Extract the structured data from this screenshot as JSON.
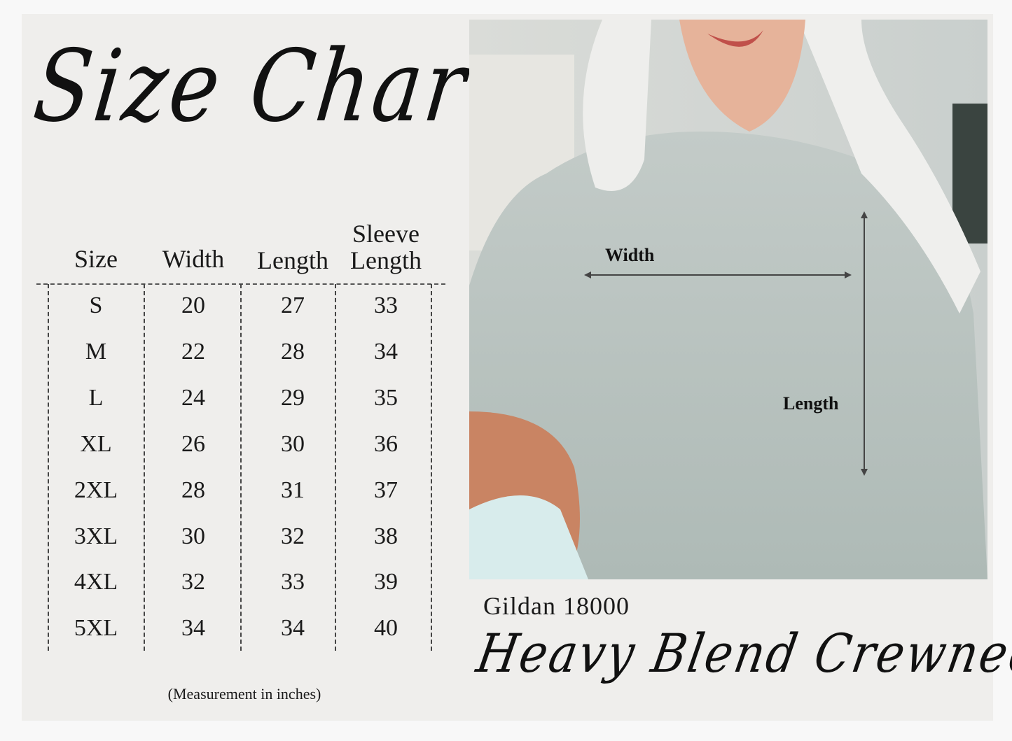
{
  "title": "Size Chart",
  "table": {
    "headers": [
      "Size",
      "Width",
      "Length",
      "Sleeve Length"
    ],
    "header_sleeve_top": "Sleeve",
    "header_sleeve_bottom": "Length",
    "rows": [
      [
        "S",
        "20",
        "27",
        "33"
      ],
      [
        "M",
        "22",
        "28",
        "34"
      ],
      [
        "L",
        "24",
        "29",
        "35"
      ],
      [
        "XL",
        "26",
        "30",
        "36"
      ],
      [
        "2XL",
        "28",
        "31",
        "37"
      ],
      [
        "3XL",
        "30",
        "32",
        "38"
      ],
      [
        "4XL",
        "32",
        "33",
        "39"
      ],
      [
        "5XL",
        "34",
        "34",
        "40"
      ]
    ],
    "note": "(Measurement in inches)"
  },
  "photo": {
    "width_label": "Width",
    "length_label": "Length"
  },
  "product": {
    "model": "Gildan 18000",
    "style": "Heavy Blend Crewneck"
  },
  "colors": {
    "background": "#efeeec",
    "text": "#1a1a1a",
    "sweater": "#b9c3bf"
  }
}
